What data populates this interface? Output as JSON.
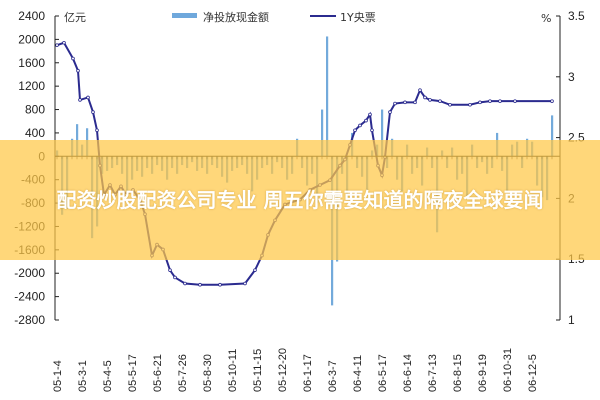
{
  "banner": {
    "text": "配资炒股配资公司专业 周五你需要知道的隔夜全球要闻"
  },
  "chart_data": {
    "type": "bar+line",
    "left_unit": "亿元",
    "right_unit": "%",
    "left_ylim": [
      -2800,
      2400
    ],
    "left_ticks": [
      2400,
      2000,
      1600,
      1200,
      800,
      400,
      0,
      -400,
      -800,
      -1200,
      -1600,
      -2000,
      -2400,
      -2800
    ],
    "right_ylim": [
      1,
      3.5
    ],
    "right_ticks": [
      3.5,
      3,
      2.5,
      2,
      1.5,
      1
    ],
    "x_tick_labels": [
      "05-1-4",
      "05-3-1",
      "05-4-5",
      "05-5-17",
      "05-6-21",
      "05-7-26",
      "05-8-30",
      "05-10-11",
      "05-11-15",
      "05-12-20",
      "06-1-17",
      "06-3-7",
      "06-4-11",
      "06-5-17",
      "06-6-14",
      "06-7-13",
      "06-8-15",
      "06-9-19",
      "06-10-31",
      "06-12-5"
    ],
    "colors": {
      "bars": "#5b9bd5",
      "line": "#2b2b8f"
    },
    "series": [
      {
        "name": "净投放现金额",
        "type": "bar",
        "axis": "left",
        "values": [
          100,
          -1000,
          -900,
          300,
          550,
          200,
          480,
          -1400,
          -1200,
          -300,
          -250,
          -200,
          -150,
          -300,
          -700,
          -400,
          -250,
          -350,
          -200,
          -300,
          -150,
          -250,
          -400,
          -200,
          -300,
          -150,
          -200,
          -100,
          -250,
          -200,
          -300,
          -150,
          -200,
          -350,
          -450,
          -250,
          -200,
          -150,
          -300,
          -600,
          -400,
          -200,
          -150,
          -300,
          -100,
          -200,
          -400,
          -300,
          300,
          -200,
          -500,
          -300,
          -800,
          800,
          2050,
          -2550,
          -1800,
          -300,
          -700,
          400,
          -200,
          -350,
          -600,
          100,
          200,
          800,
          -200,
          300,
          -400,
          -600,
          200,
          -300,
          -200,
          -500,
          150,
          -200,
          -1300,
          100,
          -200,
          150,
          -400,
          -300,
          -700,
          200,
          -200,
          -100,
          -300,
          -200,
          400,
          -250,
          -600,
          200,
          250,
          -200,
          300,
          250,
          -500,
          -700,
          -750,
          700
        ]
      },
      {
        "name": "1Y央票",
        "type": "line",
        "axis": "right",
        "points": [
          [
            0,
            3.26
          ],
          [
            1.4,
            3.28
          ],
          [
            3.2,
            3.15
          ],
          [
            4.2,
            3.05
          ],
          [
            4.6,
            2.81
          ],
          [
            6.2,
            2.83
          ],
          [
            7.2,
            2.71
          ],
          [
            8,
            2.56
          ],
          [
            8.6,
            2.27
          ],
          [
            9.4,
            2.03
          ],
          [
            10.6,
            2.11
          ],
          [
            11.6,
            2.03
          ],
          [
            12.8,
            2.1
          ],
          [
            13.8,
            2.03
          ],
          [
            15.2,
            2.07
          ],
          [
            16.6,
            1.99
          ],
          [
            17.6,
            1.87
          ],
          [
            19,
            1.53
          ],
          [
            20,
            1.62
          ],
          [
            21.2,
            1.58
          ],
          [
            22.6,
            1.41
          ],
          [
            23.6,
            1.35
          ],
          [
            25.6,
            1.3
          ],
          [
            28.6,
            1.29
          ],
          [
            32.6,
            1.29
          ],
          [
            37.6,
            1.3
          ],
          [
            39.6,
            1.41
          ],
          [
            41,
            1.53
          ],
          [
            42.2,
            1.7
          ],
          [
            43.6,
            1.82
          ],
          [
            45.6,
            1.95
          ],
          [
            48.6,
            1.99
          ],
          [
            50.6,
            2.07
          ],
          [
            52.6,
            2.11
          ],
          [
            54.6,
            2.15
          ],
          [
            56.6,
            2.27
          ],
          [
            57.6,
            2.32
          ],
          [
            58.6,
            2.44
          ],
          [
            59.6,
            2.56
          ],
          [
            60.6,
            2.6
          ],
          [
            61.8,
            2.64
          ],
          [
            62.6,
            2.69
          ],
          [
            63,
            2.56
          ],
          [
            64.2,
            2.27
          ],
          [
            65,
            2.19
          ],
          [
            65.6,
            2.34
          ],
          [
            66.6,
            2.71
          ],
          [
            67.6,
            2.78
          ],
          [
            69.6,
            2.79
          ],
          [
            71.6,
            2.79
          ],
          [
            72.6,
            2.89
          ],
          [
            73.6,
            2.83
          ],
          [
            74.6,
            2.81
          ],
          [
            76.6,
            2.8
          ],
          [
            78.6,
            2.77
          ],
          [
            82.6,
            2.77
          ],
          [
            84.6,
            2.79
          ],
          [
            86.6,
            2.8
          ],
          [
            88.6,
            2.8
          ],
          [
            91.6,
            2.8
          ],
          [
            99,
            2.8
          ]
        ]
      }
    ],
    "legend_placement": "top",
    "grid": false
  }
}
